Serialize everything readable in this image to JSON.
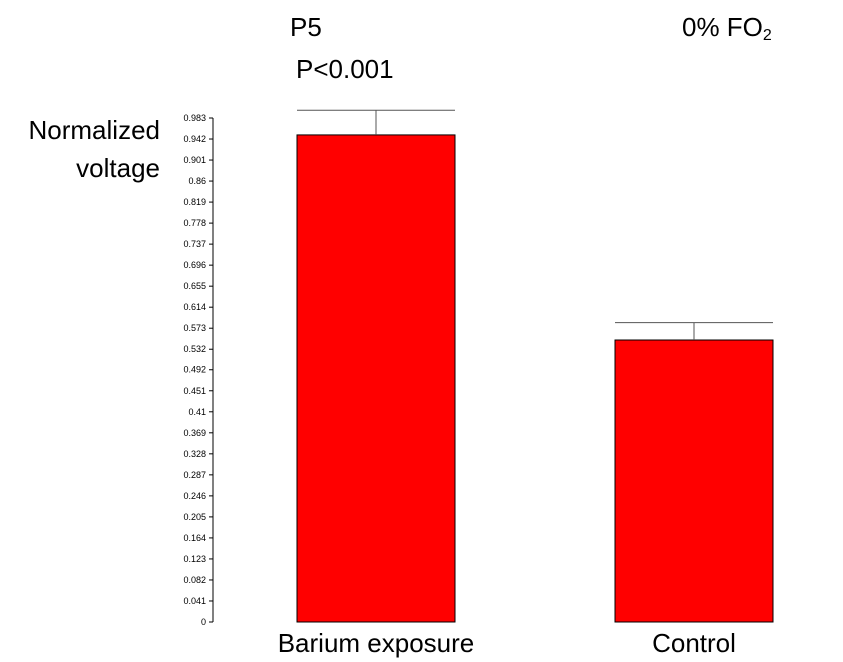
{
  "annotations": {
    "panel_label": "P5",
    "p_value": "P<0.001",
    "condition_main": "0% FO",
    "condition_sub": "2"
  },
  "chart_data": {
    "type": "bar",
    "title": "",
    "xlabel": "",
    "ylabel_lines": [
      "Normalized",
      "voltage"
    ],
    "categories": [
      "Barium exposure",
      "Control"
    ],
    "values": [
      0.95,
      0.55
    ],
    "error_upper": [
      0.048,
      0.034
    ],
    "ylim": [
      0,
      0.983
    ],
    "y_ticks": [
      "0",
      "0.041",
      "0.082",
      "0.123",
      "0.164",
      "0.205",
      "0.246",
      "0.287",
      "0.328",
      "0.369",
      "0.41",
      "0.451",
      "0.492",
      "0.532",
      "0.573",
      "0.614",
      "0.655",
      "0.696",
      "0.737",
      "0.778",
      "0.819",
      "0.86",
      "0.901",
      "0.942",
      "0.983"
    ],
    "bar_color": "#ff0000",
    "bar_edge_color": "#000000",
    "grid": false
  }
}
